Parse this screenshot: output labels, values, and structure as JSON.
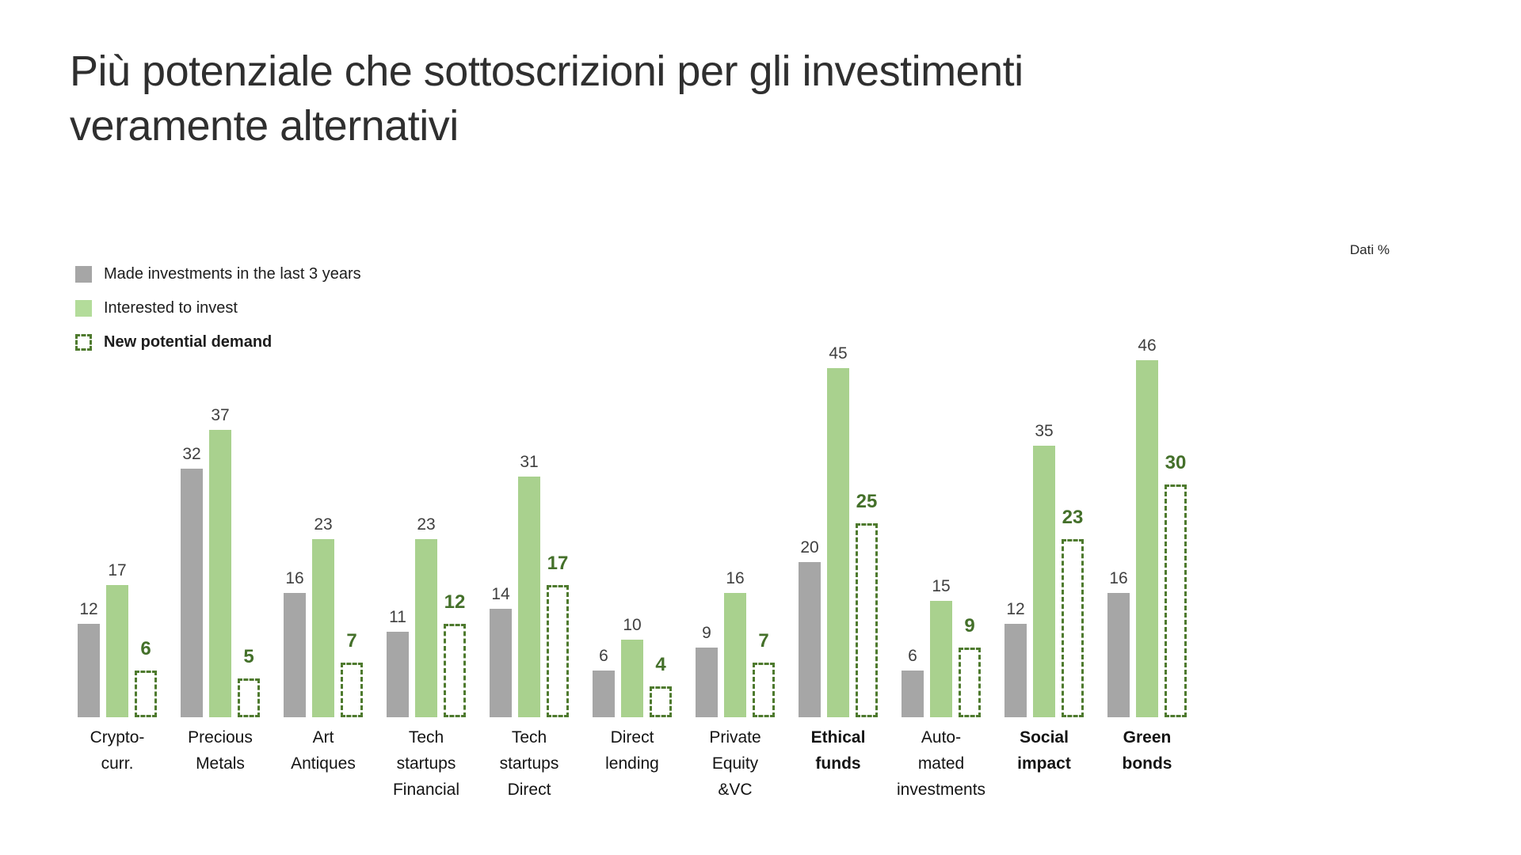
{
  "title": "Più potenziale che sottoscrizioni per gli investimenti veramente alternativi",
  "title_lines": [
    "Più potenziale che sottoscrizioni per gli investimenti",
    "veramente alternativi"
  ],
  "note": "Dati %",
  "legend": [
    {
      "label": "Made investments in the last 3 years",
      "style": "gray",
      "bold": false
    },
    {
      "label": "Interested to invest",
      "style": "green",
      "bold": false
    },
    {
      "label": "New potential demand",
      "style": "dashed",
      "bold": true
    }
  ],
  "colors": {
    "gray_bar": "#a6a6a6",
    "green_bar": "#a9d18e",
    "dark_green": "#4e7a2e",
    "value_text": "#3f3f3f",
    "new_demand_text": "#44702a"
  },
  "chart_data": {
    "type": "bar",
    "title": "Più potenziale che sottoscrizioni per gli investimenti veramente alternativi",
    "unit_note": "Dati %",
    "ylim": [
      0,
      50
    ],
    "grid": false,
    "legend_position": "top-left",
    "categories": [
      "Crypto-curr.",
      "Precious Metals",
      "Art Antiques",
      "Tech startups Financial",
      "Tech startups Direct",
      "Direct lending",
      "Private Equity &VC",
      "Ethical funds",
      "Auto-mated investments",
      "Social impact",
      "Green bonds"
    ],
    "category_lines": [
      [
        "Crypto-",
        "curr."
      ],
      [
        "Precious",
        "Metals"
      ],
      [
        "Art",
        "Antiques"
      ],
      [
        "Tech",
        "startups",
        "Financial"
      ],
      [
        "Tech",
        "startups",
        "Direct"
      ],
      [
        "Direct",
        "lending"
      ],
      [
        "Private",
        "Equity",
        "&VC"
      ],
      [
        "Ethical",
        "funds"
      ],
      [
        "Auto-",
        "mated",
        "investments"
      ],
      [
        "Social",
        "impact"
      ],
      [
        "Green",
        "bonds"
      ]
    ],
    "category_bold": [
      false,
      false,
      false,
      false,
      false,
      false,
      false,
      true,
      false,
      true,
      true
    ],
    "series": [
      {
        "name": "Made investments in the last 3 years",
        "values": [
          12,
          32,
          16,
          11,
          14,
          6,
          9,
          20,
          6,
          12,
          16
        ]
      },
      {
        "name": "Interested to invest",
        "values": [
          17,
          37,
          23,
          23,
          31,
          10,
          16,
          45,
          15,
          35,
          46
        ]
      },
      {
        "name": "New potential demand",
        "values": [
          6,
          5,
          7,
          12,
          17,
          4,
          7,
          25,
          9,
          23,
          30
        ]
      }
    ]
  }
}
